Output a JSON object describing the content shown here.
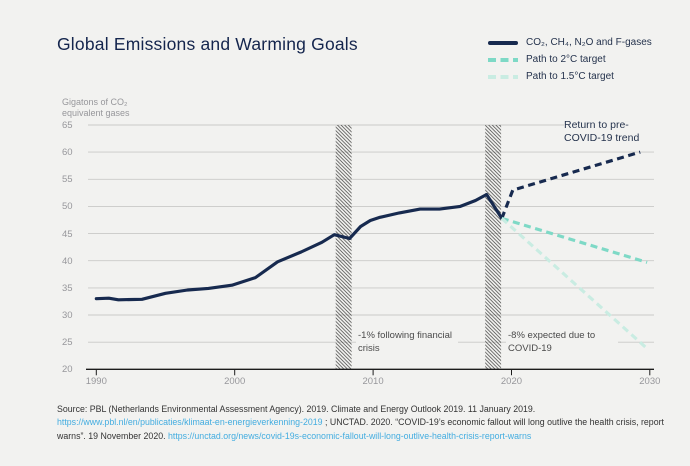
{
  "title": "Global Emissions and Warming Goals",
  "chart_data": {
    "type": "line",
    "title": "Global Emissions and Warming Goals",
    "y_axis": {
      "unit_label": "Gigatons of CO₂ equivalent gases",
      "range": [
        20,
        65
      ],
      "ticks": [
        20,
        25,
        30,
        35,
        40,
        45,
        50,
        55,
        60,
        65
      ],
      "grid": true
    },
    "x_axis": {
      "range": [
        1989.4,
        2030.3
      ],
      "ticks": [
        1990,
        2000,
        2010,
        2020,
        2030
      ]
    },
    "legend": [
      {
        "label": "CO₂, CH₄, N₂O and F-gases",
        "color": "#172a4f",
        "style": "solid"
      },
      {
        "label": "Path to 2°C target",
        "color": "#7ed9c6",
        "style": "dashed"
      },
      {
        "label": "Path to 1.5°C target",
        "color": "#c9ece2",
        "style": "dashed"
      }
    ],
    "series": [
      {
        "name": "CO₂, CH₄, N₂O and F-gases",
        "color": "#172a4f",
        "style": "solid",
        "points": [
          [
            1990,
            33.0
          ],
          [
            1990.9,
            33.1
          ],
          [
            1991.6,
            32.8
          ],
          [
            1993.3,
            32.9
          ],
          [
            1995,
            34.0
          ],
          [
            1996.6,
            34.6
          ],
          [
            1998.1,
            34.9
          ],
          [
            1999.8,
            35.5
          ],
          [
            2001.5,
            36.9
          ],
          [
            2003.1,
            39.8
          ],
          [
            2004.8,
            41.6
          ],
          [
            2006.3,
            43.4
          ],
          [
            2007.2,
            44.8
          ],
          [
            2008.3,
            44.1
          ],
          [
            2009.1,
            46.3
          ],
          [
            2009.8,
            47.4
          ],
          [
            2010.5,
            48.0
          ],
          [
            2011.9,
            48.8
          ],
          [
            2013.4,
            49.5
          ],
          [
            2014.8,
            49.5
          ],
          [
            2016.3,
            50.0
          ],
          [
            2017.4,
            51.1
          ],
          [
            2018.2,
            52.2
          ],
          [
            2019.3,
            47.8
          ]
        ]
      },
      {
        "name": "Return to pre-COVID-19 trend",
        "color": "#172a4f",
        "style": "dashed",
        "points": [
          [
            2019.3,
            47.8
          ],
          [
            2020.1,
            53.0
          ],
          [
            2029.3,
            60.0
          ]
        ]
      },
      {
        "name": "Path to 2°C target",
        "color": "#7ed9c6",
        "style": "dashed",
        "points": [
          [
            2019.3,
            47.8
          ],
          [
            2029.8,
            39.7
          ]
        ]
      },
      {
        "name": "Path to 1.5°C target",
        "color": "#c9ece2",
        "style": "dashed",
        "points": [
          [
            2019.3,
            47.8
          ],
          [
            2029.9,
            23.6
          ]
        ]
      }
    ],
    "hatched_bands": [
      {
        "x_from": 2007.3,
        "x_to": 2008.45,
        "note": "financial_crisis"
      },
      {
        "x_from": 2018.1,
        "x_to": 2019.25,
        "note": "covid"
      }
    ],
    "annotations": {
      "financial_crisis": {
        "text": "-1% following financial crisis"
      },
      "covid": {
        "text": "-8% expected due to COVID-19"
      },
      "return_to_trend": {
        "text": "Return to pre-COVID-19 trend"
      }
    },
    "colors": {
      "navy": "#172a4f",
      "teal": "#7ed9c6",
      "pale_teal": "#c9ece2",
      "gridline": "#c9c9c7",
      "axis": "#1c1c1c",
      "tick_label": "#97979b",
      "background": "#f2f2f0",
      "link_blue": "#44ade0"
    }
  },
  "footer": {
    "segments": [
      {
        "type": "text",
        "content": "Source: PBL (Netherlands Environmental Assessment Agency). 2019. Climate and Energy Outlook 2019. 11 January 2019. "
      },
      {
        "type": "link",
        "content": "https://www.pbl.nl/en/publicaties/klimaat-en-energieverkenning-2019"
      },
      {
        "type": "text",
        "content": " ; UNCTAD. 2020. “COVID-19’s economic fallout will long outlive the health crisis, report warns”. 19 November 2020. "
      },
      {
        "type": "link",
        "content": "https://unctad.org/news/covid-19s-economic-fallout-will-long-outlive-health-crisis-report-warns"
      }
    ]
  }
}
